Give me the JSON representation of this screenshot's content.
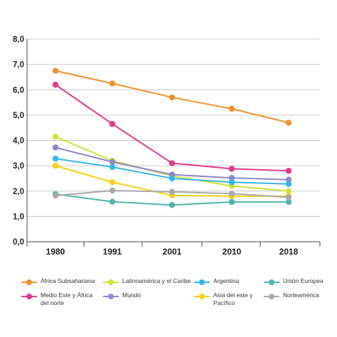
{
  "chart_data": {
    "type": "line",
    "categories": [
      "1980",
      "1991",
      "2001",
      "2010",
      "2018"
    ],
    "ylim": [
      0,
      8
    ],
    "yticks": [
      "0,0",
      "1,0",
      "2,0",
      "3,0",
      "4,0",
      "5,0",
      "6,0",
      "7,0",
      "8,0"
    ],
    "grid": true,
    "legend_position": "bottom",
    "series": [
      {
        "name": "África Subsahariana",
        "color": "#f0922b",
        "values": [
          6.75,
          6.25,
          5.7,
          5.25,
          4.7
        ]
      },
      {
        "name": "Medio Este y África del norte",
        "color": "#e03a8c",
        "values": [
          6.2,
          4.65,
          3.1,
          2.88,
          2.8
        ]
      },
      {
        "name": "Latinoamérica y el Caribe",
        "color": "#cfe03a",
        "values": [
          4.15,
          3.2,
          2.6,
          2.2,
          2.0
        ]
      },
      {
        "name": "Mundo",
        "color": "#8f87c9",
        "values": [
          3.72,
          3.15,
          2.65,
          2.52,
          2.45
        ]
      },
      {
        "name": "Argentina",
        "color": "#33b8e8",
        "values": [
          3.28,
          2.95,
          2.5,
          2.35,
          2.28
        ]
      },
      {
        "name": "Asia del este y Pacífico",
        "color": "#f7cf16",
        "values": [
          3.0,
          2.35,
          1.83,
          1.8,
          1.8
        ]
      },
      {
        "name": "Unión Europea",
        "color": "#4fb5ad",
        "values": [
          1.88,
          1.58,
          1.45,
          1.57,
          1.57
        ]
      },
      {
        "name": "Norteamérica",
        "color": "#a8a8a8",
        "values": [
          1.82,
          2.02,
          1.97,
          1.9,
          1.75
        ]
      }
    ]
  },
  "legend": {
    "items": [
      {
        "label": "África Subsahariana",
        "color": "#f0922b"
      },
      {
        "label": "Latinoamérica y el Caribe",
        "color": "#cfe03a"
      },
      {
        "label": "Argentina",
        "color": "#33b8e8"
      },
      {
        "label": "Unión Europea",
        "color": "#4fb5ad"
      },
      {
        "label": "Medio Este y África del norte",
        "color": "#e03a8c"
      },
      {
        "label": "Mundo",
        "color": "#8f87c9"
      },
      {
        "label": "Asia del este y Pacífico",
        "color": "#f7cf16"
      },
      {
        "label": "Norteamérica",
        "color": "#a8a8a8"
      }
    ]
  }
}
